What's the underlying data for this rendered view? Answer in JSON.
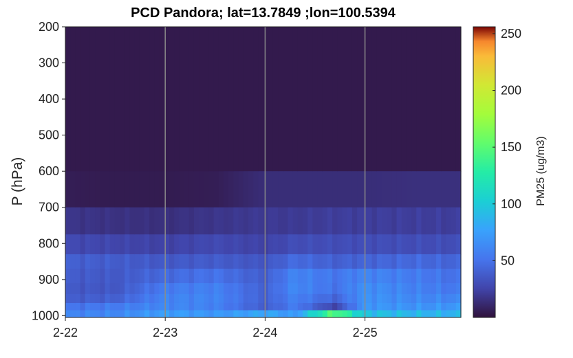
{
  "chart_data": {
    "type": "heatmap",
    "title": "PCD Pandora; lat=13.7849 ;lon=100.5394",
    "ylabel": "P (hPa)",
    "colorbar_label": "PM25 (ug/m3)",
    "colormap": "turbo",
    "x_ticks": [
      "2-22",
      "2-23",
      "2-24",
      "2-25"
    ],
    "x_days": [
      0,
      1,
      2,
      3
    ],
    "x_range_days": [
      0,
      3.96
    ],
    "y_ticks": [
      200,
      300,
      400,
      500,
      600,
      700,
      800,
      900,
      1000
    ],
    "ylim": [
      200,
      1005
    ],
    "y_reversed": true,
    "clim": [
      0,
      256
    ],
    "colorbar_ticks": [
      50,
      100,
      150,
      200,
      250
    ],
    "vertical_gridlines_at_days": [
      1,
      2,
      3
    ],
    "pressure_levels": [
      200,
      600,
      700,
      775,
      830,
      870,
      910,
      940,
      965,
      985,
      1005
    ],
    "layer_values_by_day": [
      {
        "day": 0,
        "values": [
          4,
          6,
          18,
          28,
          40,
          38,
          36,
          38,
          50,
          60
        ]
      },
      {
        "day": 0.5,
        "values": [
          4,
          5,
          16,
          26,
          38,
          36,
          35,
          40,
          55,
          62
        ]
      },
      {
        "day": 1,
        "values": [
          4,
          5,
          15,
          24,
          36,
          45,
          55,
          60,
          62,
          75
        ]
      },
      {
        "day": 1.5,
        "values": [
          4,
          6,
          18,
          28,
          38,
          50,
          58,
          60,
          58,
          70
        ]
      },
      {
        "day": 2,
        "values": [
          4,
          14,
          20,
          24,
          34,
          38,
          40,
          40,
          38,
          80
        ]
      },
      {
        "day": 2.3,
        "values": [
          4,
          14,
          20,
          30,
          46,
          60,
          62,
          58,
          55,
          70
        ]
      },
      {
        "day": 2.7,
        "values": [
          4,
          14,
          22,
          30,
          40,
          52,
          50,
          42,
          25,
          150
        ]
      },
      {
        "day": 3,
        "values": [
          4,
          14,
          22,
          30,
          42,
          60,
          66,
          68,
          70,
          95
        ]
      },
      {
        "day": 3.5,
        "values": [
          4,
          15,
          22,
          30,
          45,
          55,
          58,
          62,
          68,
          88
        ]
      },
      {
        "day": 3.96,
        "values": [
          4,
          15,
          22,
          30,
          42,
          48,
          52,
          60,
          70,
          85
        ]
      }
    ]
  }
}
